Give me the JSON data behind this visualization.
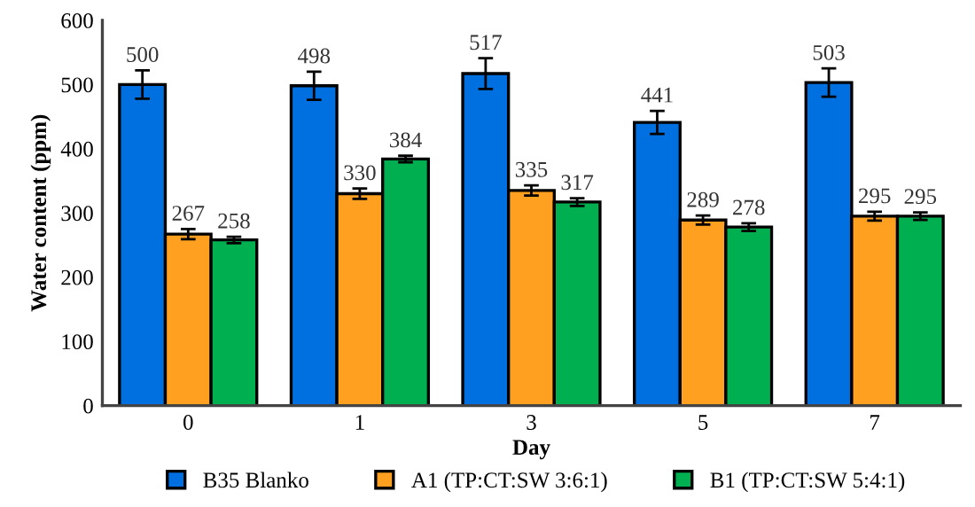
{
  "chart_data": {
    "type": "bar",
    "xlabel": "Day",
    "ylabel": "Water content (ppm)",
    "categories": [
      "0",
      "1",
      "3",
      "5",
      "7"
    ],
    "series": [
      {
        "name": "B35 Blanko",
        "color": "#0070e0",
        "values": [
          500,
          498,
          517,
          441,
          503
        ],
        "errors": [
          22,
          22,
          24,
          18,
          22
        ]
      },
      {
        "name": "A1 (TP:CT:SW 3:6:1)",
        "color": "#ffa020",
        "values": [
          267,
          330,
          335,
          289,
          295
        ],
        "errors": [
          8,
          8,
          8,
          7,
          7
        ]
      },
      {
        "name": "B1 (TP:CT:SW 5:4:1)",
        "color": "#00b050",
        "values": [
          258,
          384,
          317,
          278,
          295
        ],
        "errors": [
          5,
          5,
          6,
          6,
          6
        ]
      }
    ],
    "ylim": [
      0,
      600
    ],
    "yticks": [
      0,
      100,
      200,
      300,
      400,
      500,
      600
    ],
    "data_labels": true,
    "grid": false,
    "legend": "bottom"
  }
}
